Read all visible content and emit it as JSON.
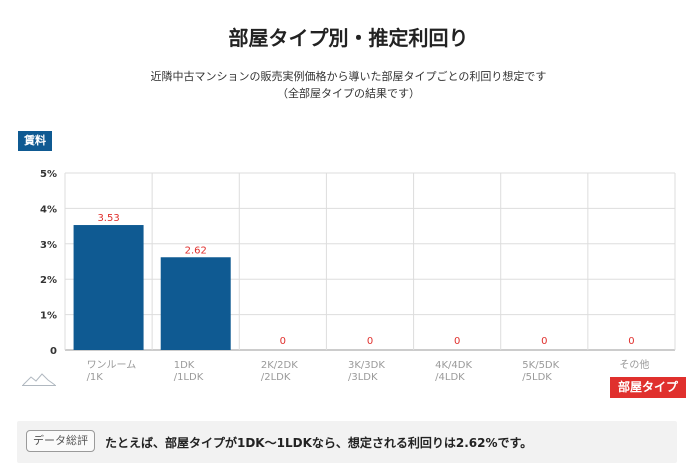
{
  "chart_data": {
    "type": "bar",
    "title": "部屋タイプ別・推定利回り",
    "subtitle_lines": [
      "近隣中古マンションの販売実例価格から導いた部屋タイプごとの利回り想定です",
      "（全部屋タイプの結果です）"
    ],
    "ylabel": "賃料",
    "xlabel": "部屋タイプ",
    "categories": [
      [
        "ワンルーム",
        "/1K"
      ],
      [
        "1DK",
        "/1LDK"
      ],
      [
        "2K/2DK",
        "/2LDK"
      ],
      [
        "3K/3DK",
        "/3LDK"
      ],
      [
        "4K/4DK",
        "/4LDK"
      ],
      [
        "5K/5DK",
        "/5LDK"
      ],
      [
        "その他"
      ]
    ],
    "values": [
      3.53,
      2.62,
      0,
      0,
      0,
      0,
      0
    ],
    "value_labels": [
      "3.53",
      "2.62",
      "0",
      "0",
      "0",
      "0",
      "0"
    ],
    "ylim": [
      0,
      5
    ],
    "yticks": [
      0,
      1,
      2,
      3,
      4,
      5
    ],
    "ytick_labels": [
      "0",
      "1%",
      "2%",
      "3%",
      "4%",
      "5%"
    ],
    "grid": true,
    "bar_color": "#0f5a92",
    "value_label_color": "#e0302d"
  },
  "summary": {
    "tag": "データ総評",
    "text": "たとえば、部屋タイプが1DK〜1LDKなら、想定される利回りは2.62%です。"
  }
}
